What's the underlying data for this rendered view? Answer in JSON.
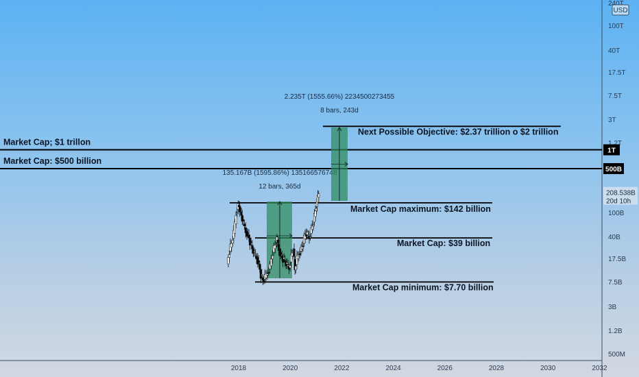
{
  "chart_data": {
    "type": "candlestick",
    "axis": {
      "currency": "USD",
      "y_scale": "log",
      "y_ticks": [
        "240T",
        "100T",
        "40T",
        "17.5T",
        "7.5T",
        "3T",
        "1.2T",
        "500B",
        "208.538B",
        "100B",
        "40B",
        "17.5B",
        "7.5B",
        "3B",
        "1.2B",
        "500M"
      ],
      "x_ticks": [
        "2018",
        "2020",
        "2022",
        "2024",
        "2026",
        "2028",
        "2030",
        "2032"
      ]
    },
    "horizontal_lines": [
      {
        "label": "Market Cap; $1 trillon",
        "tag": "1T",
        "value": 1000000000000
      },
      {
        "label": "Market Cap: $500 billion",
        "tag": "500B",
        "value": 500000000000
      }
    ],
    "levels": [
      {
        "label": "Next Possible Objective: $2.37 trillion o $2 trillion",
        "value": 2370000000000
      },
      {
        "label": "Market Cap maximum: $142 billion",
        "value": 142000000000
      },
      {
        "label": "Market Cap: $39 billion",
        "value": 39000000000
      },
      {
        "label": "Market Cap minimum: $7.70 billion",
        "value": 7700000000
      }
    ],
    "measures": [
      {
        "line1": "135.167B (1595.86%) 135166576748",
        "line2": "12 bars, 365d"
      },
      {
        "line1": "2.235T (1555.66%) 2234500273455",
        "line2": "8 bars, 243d"
      }
    ],
    "current_price": {
      "value": "208.538B",
      "countdown": "20d 10h"
    }
  }
}
